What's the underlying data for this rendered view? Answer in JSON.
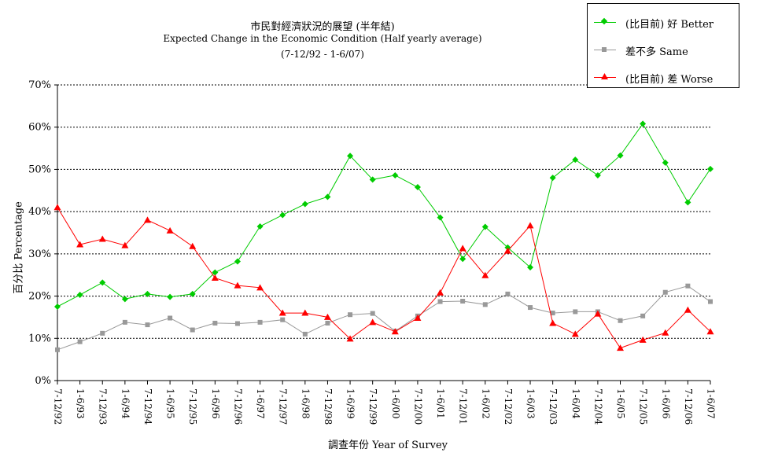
{
  "title": {
    "line1": "市民對經濟狀況的展望 (半年結)",
    "line2": "Expected Change in the Economic Condition  (Half yearly average)",
    "line3": "(7-12/92 - 1-6/07)"
  },
  "legend": {
    "position": "top-right",
    "items": [
      {
        "label": "(比目前) 好 Better",
        "color": "#00cc00",
        "marker": "diamond"
      },
      {
        "label": "差不多 Same",
        "color": "#999999",
        "marker": "square"
      },
      {
        "label": "(比目前) 差 Worse",
        "color": "#ff0000",
        "marker": "triangle"
      }
    ]
  },
  "chart_data": {
    "type": "line",
    "title": "市民對經濟狀況的展望 (半年結)",
    "xlabel": "調查年份 Year of Survey",
    "ylabel": "百分比 Percentage",
    "ylim": [
      0,
      70
    ],
    "yticks": [
      "0%",
      "10%",
      "20%",
      "30%",
      "40%",
      "50%",
      "60%",
      "70%"
    ],
    "grid": "horizontal dashed",
    "categories": [
      "7-12/92",
      "1-6/93",
      "7-12/93",
      "1-6/94",
      "7-12/94",
      "1-6/95",
      "7-12/95",
      "1-6/96",
      "7-12/96",
      "1-6/97",
      "7-12/97",
      "1-6/98",
      "7-12/98",
      "1-6/99",
      "7-12/99",
      "1-6/00",
      "7-12/00",
      "1-6/01",
      "7-12/01",
      "1-6/02",
      "7-12/02",
      "1-6/03",
      "7-12/03",
      "1-6/04",
      "7-12/04",
      "1-6/05",
      "7-12/05",
      "1-6/06",
      "7-12/06",
      "1-6/07"
    ],
    "series": [
      {
        "name": "(比目前) 好 Better",
        "color": "#00cc00",
        "marker": "diamond",
        "values": [
          17.5,
          20.3,
          23.2,
          19.3,
          20.5,
          19.8,
          20.5,
          25.6,
          28.2,
          36.5,
          39.2,
          41.8,
          43.5,
          53.2,
          47.6,
          48.6,
          45.8,
          38.6,
          28.8,
          36.4,
          31.5,
          26.8,
          48.0,
          52.3,
          48.6,
          53.3,
          60.8,
          51.6,
          42.2,
          50.1
        ]
      },
      {
        "name": "差不多 Same",
        "color": "#999999",
        "marker": "square",
        "values": [
          7.3,
          9.2,
          11.2,
          13.8,
          13.2,
          14.8,
          12.0,
          13.6,
          13.5,
          13.8,
          14.4,
          11.0,
          13.6,
          15.6,
          15.9,
          11.7,
          15.3,
          18.7,
          18.8,
          18.0,
          20.5,
          17.3,
          16.0,
          16.3,
          16.3,
          14.2,
          15.3,
          20.9,
          22.4,
          18.7
        ]
      },
      {
        "name": "(比目前) 差 Worse",
        "color": "#ff0000",
        "marker": "triangle",
        "values": [
          41.0,
          32.2,
          33.5,
          32.0,
          38.0,
          35.5,
          31.8,
          24.3,
          22.5,
          22.0,
          16.0,
          16.0,
          15.0,
          9.9,
          13.8,
          11.6,
          14.8,
          20.8,
          31.3,
          24.9,
          30.7,
          36.7,
          13.6,
          11.0,
          15.8,
          7.7,
          9.6,
          11.3,
          16.7,
          11.6
        ]
      }
    ]
  }
}
